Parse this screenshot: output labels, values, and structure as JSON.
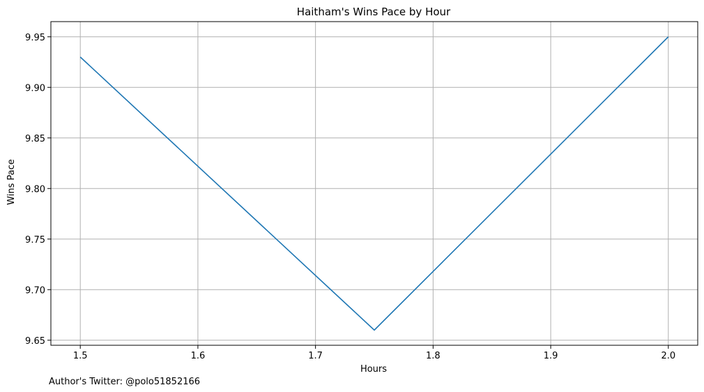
{
  "chart_data": {
    "type": "line",
    "title": "Haitham's Wins Pace by Hour",
    "xlabel": "Hours",
    "ylabel": "Wins Pace",
    "xlim": [
      1.475,
      2.025
    ],
    "ylim": [
      9.645,
      9.965
    ],
    "xticks": [
      1.5,
      1.6,
      1.7,
      1.8,
      1.9,
      2.0
    ],
    "xtick_labels": [
      "1.5",
      "1.6",
      "1.7",
      "1.8",
      "1.9",
      "2.0"
    ],
    "yticks": [
      9.65,
      9.7,
      9.75,
      9.8,
      9.85,
      9.9,
      9.95
    ],
    "ytick_labels": [
      "9.65",
      "9.70",
      "9.75",
      "9.80",
      "9.85",
      "9.90",
      "9.95"
    ],
    "grid": true,
    "series": [
      {
        "x": [
          1.5,
          1.75,
          2.0
        ],
        "y": [
          9.93,
          9.66,
          9.95
        ],
        "color": "#1f77b4"
      }
    ]
  },
  "footer": {
    "text": "Author's Twitter: @polo51852166"
  }
}
